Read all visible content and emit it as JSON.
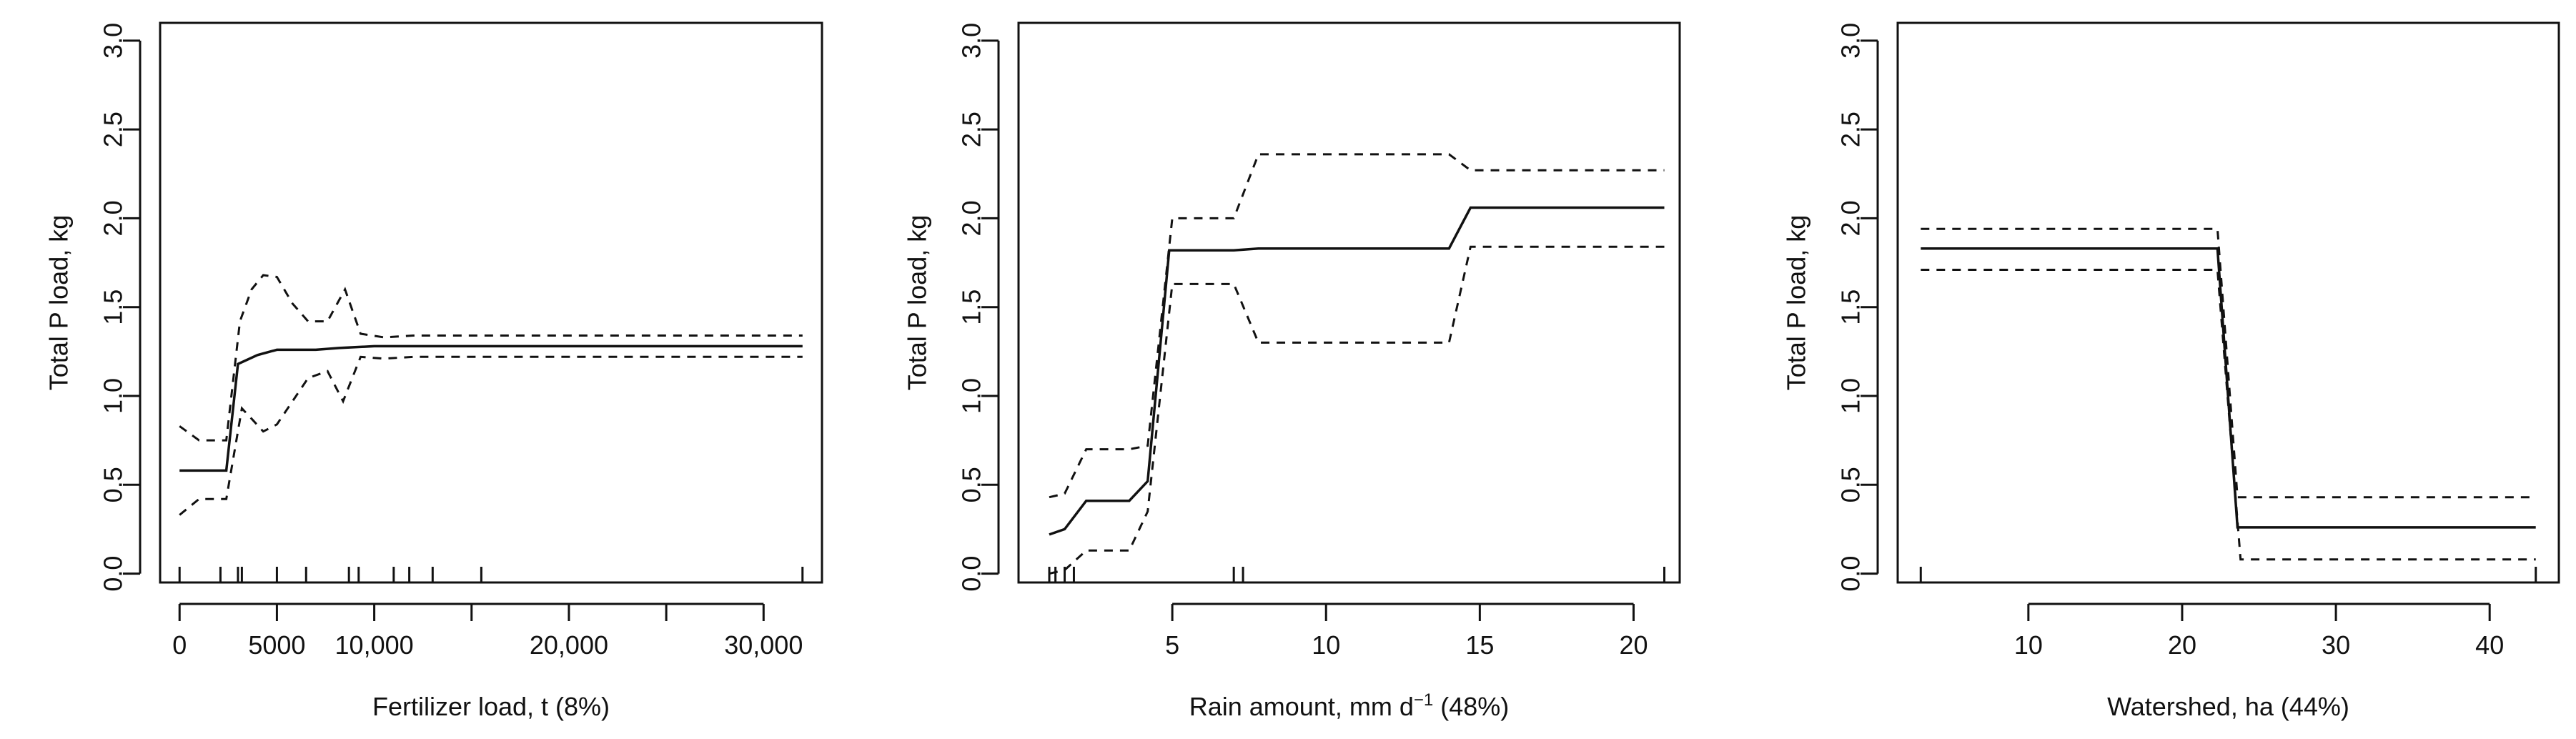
{
  "panels": [
    {
      "ylabel": "Total P load, kg",
      "xlabel_parts": [
        "Fertilizer load, t (8%)"
      ],
      "xlim": [
        -1000,
        33000
      ],
      "ylim": [
        -0.05,
        3.1
      ],
      "x_ticks": [
        {
          "value": 0,
          "label": "0"
        },
        {
          "value": 5000,
          "label": "5000"
        },
        {
          "value": 10000,
          "label": "10,000"
        },
        {
          "value": 20000,
          "label": "20,000"
        },
        {
          "value": 30000,
          "label": "30,000"
        }
      ],
      "x_minor_ticks": [
        15000,
        25000
      ],
      "y_ticks": [
        {
          "value": 0,
          "label": "0.0"
        },
        {
          "value": 0.5,
          "label": "0.5"
        },
        {
          "value": 1.0,
          "label": "1.0"
        },
        {
          "value": 1.5,
          "label": "1.5"
        },
        {
          "value": 2.0,
          "label": "2.0"
        },
        {
          "value": 2.5,
          "label": "2.5"
        },
        {
          "value": 3.0,
          "label": "3.0"
        }
      ],
      "rug": [
        0,
        2100,
        3000,
        3200,
        5000,
        6500,
        8700,
        9200,
        11000,
        11800,
        13000,
        15500,
        32000
      ],
      "chart_data": {
        "type": "line",
        "xlabel": "Fertilizer load, t (8%)",
        "ylabel": "Total P load, kg",
        "ylim": [
          0,
          3.0
        ],
        "series": [
          {
            "style": "solid",
            "x": [
              0,
              2400,
              3000,
              4000,
              5000,
              7000,
              8200,
              10000,
              12000,
              32000
            ],
            "y": [
              0.58,
              0.58,
              1.18,
              1.23,
              1.26,
              1.26,
              1.27,
              1.28,
              1.28,
              1.28
            ]
          },
          {
            "style": "dashed",
            "x": [
              0,
              1000,
              2400,
              3100,
              3700,
              4300,
              5000,
              5800,
              6600,
              7600,
              8500,
              9300,
              10500,
              12000,
              32000
            ],
            "y": [
              0.83,
              0.75,
              0.75,
              1.42,
              1.6,
              1.68,
              1.67,
              1.52,
              1.42,
              1.42,
              1.6,
              1.35,
              1.33,
              1.34,
              1.34
            ]
          },
          {
            "style": "dashed",
            "x": [
              0,
              1000,
              2400,
              3200,
              3800,
              4300,
              5000,
              5800,
              6600,
              7600,
              8400,
              9300,
              10500,
              12000,
              32000
            ],
            "y": [
              0.33,
              0.42,
              0.42,
              0.93,
              0.86,
              0.8,
              0.84,
              0.97,
              1.1,
              1.14,
              0.97,
              1.22,
              1.21,
              1.22,
              1.22
            ]
          }
        ]
      }
    },
    {
      "ylabel": "Total P load, kg",
      "xlabel_parts": [
        "Rain amount, mm d",
        "−1",
        " (48%)"
      ],
      "xlim": [
        0,
        21.5
      ],
      "ylim": [
        -0.05,
        3.1
      ],
      "x_ticks": [
        {
          "value": 5,
          "label": "5"
        },
        {
          "value": 10,
          "label": "10"
        },
        {
          "value": 15,
          "label": "15"
        },
        {
          "value": 20,
          "label": "20"
        }
      ],
      "x_minor_ticks": [],
      "y_ticks": [
        {
          "value": 0,
          "label": "0.0"
        },
        {
          "value": 0.5,
          "label": "0.5"
        },
        {
          "value": 1.0,
          "label": "1.0"
        },
        {
          "value": 1.5,
          "label": "1.5"
        },
        {
          "value": 2.0,
          "label": "2.0"
        },
        {
          "value": 2.5,
          "label": "2.5"
        },
        {
          "value": 3.0,
          "label": "3.0"
        }
      ],
      "rug": [
        1.0,
        1.2,
        1.5,
        1.8,
        7.0,
        7.3,
        21.0
      ],
      "chart_data": {
        "type": "line",
        "xlabel": "Rain amount, mm d−1 (48%)",
        "ylabel": "Total P load, kg",
        "ylim": [
          0,
          3.0
        ],
        "series": [
          {
            "style": "solid",
            "x": [
              1.0,
              1.5,
              2.2,
              3.6,
              4.2,
              4.9,
              7.0,
              7.8,
              9.0,
              14.0,
              14.7,
              21.0
            ],
            "y": [
              0.22,
              0.25,
              0.41,
              0.41,
              0.52,
              1.82,
              1.82,
              1.83,
              1.83,
              1.83,
              2.06,
              2.06
            ]
          },
          {
            "style": "dashed",
            "x": [
              1.0,
              1.5,
              2.2,
              3.6,
              4.2,
              5.0,
              7.0,
              7.8,
              14.0,
              14.7,
              21.0
            ],
            "y": [
              0.43,
              0.45,
              0.7,
              0.7,
              0.72,
              2.0,
              2.0,
              2.36,
              2.36,
              2.27,
              2.27
            ]
          },
          {
            "style": "dashed",
            "x": [
              1.0,
              1.5,
              2.2,
              3.6,
              4.2,
              5.0,
              7.0,
              7.8,
              14.0,
              14.7,
              21.0
            ],
            "y": [
              0.0,
              0.02,
              0.13,
              0.13,
              0.35,
              1.63,
              1.63,
              1.3,
              1.3,
              1.84,
              1.84
            ]
          }
        ]
      }
    },
    {
      "ylabel": "Total P load, kg",
      "xlabel_parts": [
        "Watershed, ha (44%)"
      ],
      "xlim": [
        1.5,
        44.5
      ],
      "ylim": [
        -0.05,
        3.1
      ],
      "x_ticks": [
        {
          "value": 10,
          "label": "10"
        },
        {
          "value": 20,
          "label": "20"
        },
        {
          "value": 30,
          "label": "30"
        },
        {
          "value": 40,
          "label": "40"
        }
      ],
      "x_minor_ticks": [],
      "y_ticks": [
        {
          "value": 0,
          "label": "0.0"
        },
        {
          "value": 0.5,
          "label": "0.5"
        },
        {
          "value": 1.0,
          "label": "1.0"
        },
        {
          "value": 1.5,
          "label": "1.5"
        },
        {
          "value": 2.0,
          "label": "2.0"
        },
        {
          "value": 2.5,
          "label": "2.5"
        },
        {
          "value": 3.0,
          "label": "3.0"
        }
      ],
      "rug": [
        3,
        43
      ],
      "chart_data": {
        "type": "line",
        "xlabel": "Watershed, ha (44%)",
        "ylabel": "Total P load, kg",
        "ylim": [
          0,
          3.0
        ],
        "series": [
          {
            "style": "solid",
            "x": [
              3,
              22.3,
              23.6,
              43
            ],
            "y": [
              1.83,
              1.83,
              0.26,
              0.26
            ]
          },
          {
            "style": "dashed",
            "x": [
              3,
              22.3,
              23.6,
              43
            ],
            "y": [
              1.94,
              1.94,
              0.43,
              0.43
            ]
          },
          {
            "style": "dashed",
            "x": [
              3,
              22.3,
              23.8,
              43
            ],
            "y": [
              1.71,
              1.71,
              0.08,
              0.08
            ]
          }
        ]
      }
    }
  ]
}
